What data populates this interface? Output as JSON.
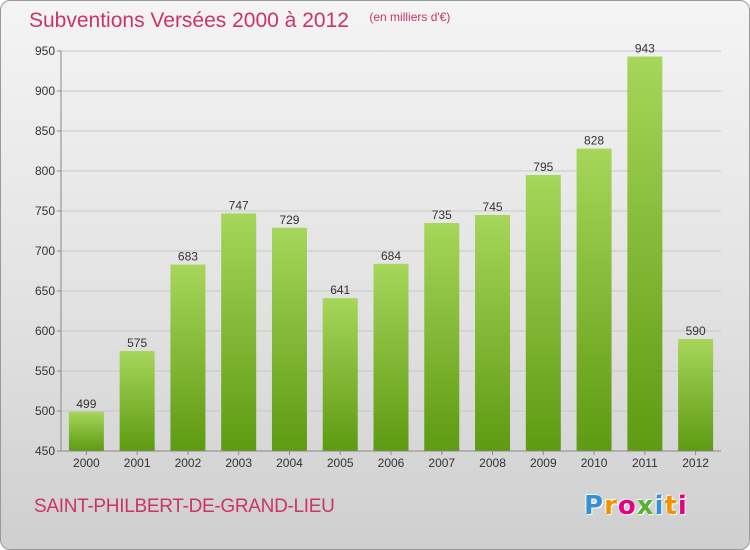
{
  "title": "Subventions Versées 2000 à 2012",
  "subtitle": "(en milliers d'€)",
  "town": "SAINT-PHILBERT-DE-GRAND-LIEU",
  "logo": {
    "letters": [
      "P",
      "r",
      "o",
      "x",
      "i",
      "t",
      "i"
    ],
    "colors": [
      "#3a8fd0",
      "#f39200",
      "#e6007e",
      "#5ab031",
      "#3a8fd0",
      "#f39200",
      "#e6007e"
    ]
  },
  "colors": {
    "bar_light": "#a6d65a",
    "bar_dark": "#5e9a12",
    "axis": "#888888",
    "text": "#333333",
    "accent": "#cc3366"
  },
  "chart_data": {
    "type": "bar",
    "title": "Subventions Versées 2000 à 2012",
    "subtitle": "(en milliers d'€)",
    "categories": [
      "2000",
      "2001",
      "2002",
      "2003",
      "2004",
      "2005",
      "2006",
      "2007",
      "2008",
      "2009",
      "2010",
      "2011",
      "2012"
    ],
    "values": [
      499,
      575,
      683,
      747,
      729,
      641,
      684,
      735,
      745,
      795,
      828,
      943,
      590
    ],
    "ylim": [
      450,
      950
    ],
    "yticks": [
      450,
      500,
      550,
      600,
      650,
      700,
      750,
      800,
      850,
      900,
      950
    ],
    "grid": true
  }
}
